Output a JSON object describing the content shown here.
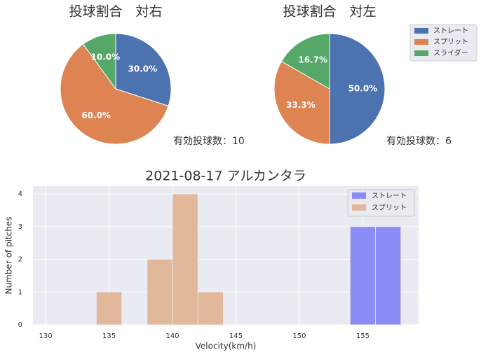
{
  "chart_data": [
    {
      "type": "pie",
      "title": "投球割合　対右",
      "values": [
        30,
        60,
        10
      ],
      "value_labels": [
        "30.0%",
        "60.0%",
        "10.0%"
      ],
      "colors": [
        "#4c72b0",
        "#dd8452",
        "#55a868"
      ],
      "annotation": "有効投球数：10"
    },
    {
      "type": "pie",
      "title": "投球割合　対左",
      "values": [
        50,
        33.3,
        16.7
      ],
      "value_labels": [
        "50.0%",
        "33.3%",
        "16.7%"
      ],
      "colors": [
        "#4c72b0",
        "#dd8452",
        "#55a868"
      ],
      "categories": [
        "ストレート",
        "スプリット",
        "スライダー"
      ],
      "legend": "upper right",
      "annotation": "有効投球数：6"
    },
    {
      "type": "histogram",
      "title": "2021-08-17 アルカンタラ",
      "xlabel": "Velocity(km/h)",
      "ylabel": "Number of pitches",
      "series": [
        {
          "name": "ストレート",
          "color": "#8c8cf6",
          "bins": [
            154,
            156,
            158
          ],
          "values": [
            3,
            3
          ]
        },
        {
          "name": "スプリット",
          "color": "#e2b89a",
          "bins": [
            134,
            136,
            138,
            140,
            142,
            144
          ],
          "values": [
            1,
            0,
            2,
            4,
            1
          ]
        }
      ],
      "xlim": [
        129,
        159.4
      ],
      "xticks": [
        130,
        135,
        140,
        145,
        150,
        155
      ],
      "ylim": [
        0,
        4.24
      ],
      "yticks": [
        0,
        1,
        2,
        3,
        4
      ],
      "grid": true,
      "legend": "upper right"
    }
  ]
}
